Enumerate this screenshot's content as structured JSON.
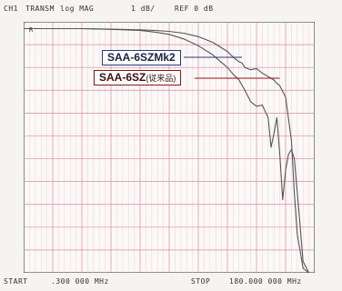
{
  "header": {
    "channel": "CH1",
    "mode": "TRANSM",
    "format": "log MAG",
    "scale": "1 dB/",
    "ref": "REF 0 dB"
  },
  "footer": {
    "start_label": "START",
    "start_value": ".300 000 MHz",
    "stop_label": "STOP",
    "stop_value": "180.000 000 MHz"
  },
  "chart_data": {
    "type": "line",
    "title": "",
    "xlabel": "",
    "ylabel": "",
    "xlim": [
      0,
      10
    ],
    "ylim": [
      -11,
      0
    ],
    "grid": true,
    "ref_marker": "R",
    "series": [
      {
        "name": "SAA-6SZMk2",
        "color": "#2b3a7a",
        "x": [
          0,
          1,
          2,
          3,
          4,
          4.5,
          5,
          5.5,
          6,
          6.5,
          7,
          7.2,
          7.4,
          7.5,
          7.6,
          7.8,
          8.0,
          8.2,
          8.4,
          8.6,
          8.7,
          8.8,
          9.0,
          9.2,
          9.3,
          9.4,
          9.6,
          9.8,
          10
        ],
        "values": [
          -0.3,
          -0.3,
          -0.3,
          -0.32,
          -0.35,
          -0.38,
          -0.42,
          -0.5,
          -0.65,
          -0.9,
          -1.3,
          -1.55,
          -1.75,
          -1.8,
          -2.0,
          -2.1,
          -2.05,
          -2.25,
          -2.4,
          -2.55,
          -2.7,
          -2.8,
          -3.3,
          -5.2,
          -7.5,
          -9.3,
          -10.8,
          -11,
          -11
        ]
      },
      {
        "name": "SAA-6SZ",
        "label_suffix": "(従来品)",
        "color": "#8b1a1a",
        "x": [
          0,
          1,
          2,
          3,
          4,
          4.5,
          5,
          5.5,
          6,
          6.5,
          7,
          7.2,
          7.4,
          7.6,
          7.8,
          8.0,
          8.2,
          8.4,
          8.5,
          8.6,
          8.7,
          8.8,
          8.9,
          9.0,
          9.1,
          9.2,
          9.3,
          9.45,
          9.6,
          9.8,
          10
        ],
        "values": [
          -0.3,
          -0.3,
          -0.3,
          -0.33,
          -0.38,
          -0.45,
          -0.55,
          -0.75,
          -1.05,
          -1.45,
          -2.0,
          -2.3,
          -2.55,
          -3.0,
          -3.5,
          -3.7,
          -3.65,
          -4.2,
          -5.5,
          -4.9,
          -4.2,
          -5.8,
          -7.8,
          -6.5,
          -5.8,
          -5.6,
          -6.0,
          -8.2,
          -10.5,
          -11,
          -11
        ]
      }
    ]
  }
}
